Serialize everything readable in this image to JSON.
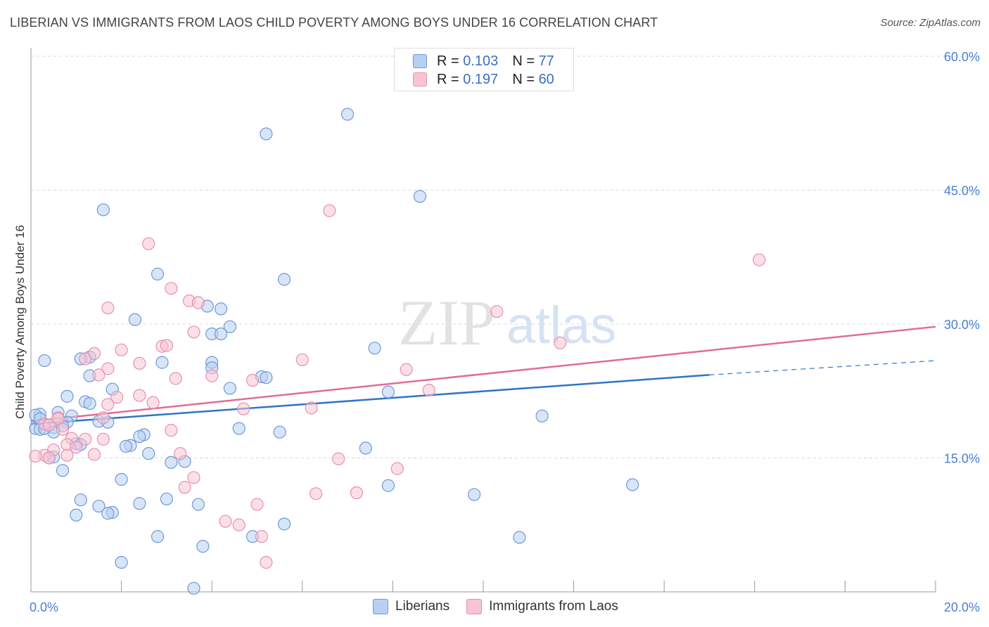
{
  "title": "LIBERIAN VS IMMIGRANTS FROM LAOS CHILD POVERTY AMONG BOYS UNDER 16 CORRELATION CHART",
  "source": "Source: ZipAtlas.com",
  "watermark": {
    "zip": "ZIP",
    "atlas": "atlas"
  },
  "legend": {
    "series1": {
      "r_label": "R =",
      "r_value": "0.103",
      "n_label": "N =",
      "n_value": "77"
    },
    "series2": {
      "r_label": "R =",
      "r_value": "0.197",
      "n_label": "N =",
      "n_value": "60"
    }
  },
  "bottom_legend": {
    "series1": "Liberians",
    "series2": "Immigrants from Laos"
  },
  "colors": {
    "blue_fill": "#b8d0f0",
    "blue_stroke": "#6d9ad8",
    "blue_line": "#2f74c8",
    "pink_fill": "#f8c4d4",
    "pink_stroke": "#e890ae",
    "pink_line": "#e06c98",
    "grid": "#d8d8d8",
    "tick_label": "#4a7fd0"
  },
  "chart_data": {
    "type": "scatter",
    "title": "LIBERIAN VS IMMIGRANTS FROM LAOS CHILD POVERTY AMONG BOYS UNDER 16 CORRELATION CHART",
    "xlabel": "",
    "ylabel": "Child Poverty Among Boys Under 16",
    "xlim": [
      0,
      20
    ],
    "ylim": [
      0,
      60
    ],
    "x_tick_labels": [
      "0.0%",
      "20.0%"
    ],
    "y_ticks": [
      15,
      30,
      45,
      60
    ],
    "y_tick_labels": [
      "15.0%",
      "30.0%",
      "45.0%",
      "60.0%"
    ],
    "grid": true,
    "legend_position": "top-center",
    "series": [
      {
        "name": "Liberians",
        "color": "#6d9ad8",
        "trend": {
          "x": [
            0,
            15
          ],
          "y": [
            18.8,
            24.3
          ],
          "dashed_to": [
            20,
            25.9
          ]
        },
        "points": [
          [
            7.0,
            53.5
          ],
          [
            5.2,
            51.3
          ],
          [
            1.6,
            42.8
          ],
          [
            8.6,
            44.3
          ],
          [
            2.8,
            35.6
          ],
          [
            5.6,
            35.0
          ],
          [
            3.9,
            32.0
          ],
          [
            4.2,
            31.7
          ],
          [
            2.3,
            30.5
          ],
          [
            4.4,
            29.7
          ],
          [
            4.0,
            28.9
          ],
          [
            4.2,
            28.9
          ],
          [
            7.6,
            27.3
          ],
          [
            1.3,
            26.3
          ],
          [
            1.1,
            26.1
          ],
          [
            0.3,
            25.9
          ],
          [
            2.9,
            25.7
          ],
          [
            4.0,
            25.7
          ],
          [
            4.0,
            25.1
          ],
          [
            1.3,
            24.2
          ],
          [
            5.1,
            24.1
          ],
          [
            5.2,
            24.0
          ],
          [
            1.8,
            22.7
          ],
          [
            4.4,
            22.8
          ],
          [
            7.9,
            22.4
          ],
          [
            0.8,
            21.9
          ],
          [
            1.2,
            21.3
          ],
          [
            1.3,
            21.1
          ],
          [
            0.6,
            20.1
          ],
          [
            0.9,
            19.7
          ],
          [
            0.2,
            19.9
          ],
          [
            0.1,
            19.8
          ],
          [
            11.3,
            19.7
          ],
          [
            1.5,
            19.1
          ],
          [
            1.7,
            19.0
          ],
          [
            0.8,
            19.0
          ],
          [
            0.7,
            18.6
          ],
          [
            0.5,
            18.4
          ],
          [
            0.1,
            18.3
          ],
          [
            0.2,
            18.2
          ],
          [
            4.6,
            18.3
          ],
          [
            5.5,
            17.9
          ],
          [
            0.5,
            17.9
          ],
          [
            2.5,
            17.6
          ],
          [
            2.4,
            17.4
          ],
          [
            1.0,
            16.6
          ],
          [
            1.1,
            16.5
          ],
          [
            2.2,
            16.4
          ],
          [
            2.1,
            16.3
          ],
          [
            7.4,
            16.1
          ],
          [
            2.6,
            15.5
          ],
          [
            0.5,
            15.1
          ],
          [
            0.4,
            15.0
          ],
          [
            3.1,
            14.5
          ],
          [
            0.7,
            13.6
          ],
          [
            3.4,
            14.6
          ],
          [
            2.0,
            12.6
          ],
          [
            7.9,
            11.9
          ],
          [
            13.3,
            12.0
          ],
          [
            1.1,
            10.3
          ],
          [
            3.0,
            10.4
          ],
          [
            1.5,
            9.6
          ],
          [
            2.4,
            9.9
          ],
          [
            3.7,
            9.8
          ],
          [
            9.8,
            10.9
          ],
          [
            1.8,
            8.9
          ],
          [
            1.7,
            8.8
          ],
          [
            1.0,
            8.6
          ],
          [
            5.6,
            7.6
          ],
          [
            4.9,
            6.2
          ],
          [
            2.8,
            6.2
          ],
          [
            10.8,
            6.1
          ],
          [
            3.8,
            5.1
          ],
          [
            2.0,
            3.3
          ],
          [
            3.6,
            0.4
          ],
          [
            0.2,
            19.4
          ],
          [
            0.3,
            18.3
          ]
        ]
      },
      {
        "name": "Immigrants from Laos",
        "color": "#e890ae",
        "trend": {
          "x": [
            0,
            20
          ],
          "y": [
            19.1,
            29.7
          ]
        },
        "points": [
          [
            6.6,
            42.7
          ],
          [
            16.1,
            37.2
          ],
          [
            2.6,
            39.0
          ],
          [
            3.1,
            34.0
          ],
          [
            1.7,
            31.8
          ],
          [
            3.5,
            32.6
          ],
          [
            3.7,
            32.4
          ],
          [
            10.3,
            31.4
          ],
          [
            3.6,
            29.1
          ],
          [
            2.0,
            27.1
          ],
          [
            2.9,
            27.5
          ],
          [
            3.0,
            27.6
          ],
          [
            1.4,
            26.7
          ],
          [
            1.2,
            26.1
          ],
          [
            11.7,
            27.9
          ],
          [
            2.4,
            25.6
          ],
          [
            6.0,
            26.0
          ],
          [
            1.7,
            25.0
          ],
          [
            8.3,
            24.9
          ],
          [
            1.5,
            24.3
          ],
          [
            4.0,
            24.2
          ],
          [
            3.2,
            23.9
          ],
          [
            4.9,
            23.7
          ],
          [
            2.4,
            22.0
          ],
          [
            1.9,
            21.8
          ],
          [
            1.7,
            21.0
          ],
          [
            2.7,
            21.2
          ],
          [
            8.8,
            22.6
          ],
          [
            4.7,
            20.5
          ],
          [
            6.2,
            20.6
          ],
          [
            0.6,
            19.5
          ],
          [
            0.6,
            19.4
          ],
          [
            1.6,
            19.5
          ],
          [
            0.3,
            18.8
          ],
          [
            0.4,
            18.7
          ],
          [
            3.1,
            18.1
          ],
          [
            0.7,
            18.2
          ],
          [
            1.6,
            17.1
          ],
          [
            1.2,
            17.1
          ],
          [
            0.9,
            17.2
          ],
          [
            0.8,
            16.5
          ],
          [
            1.0,
            16.2
          ],
          [
            0.5,
            15.9
          ],
          [
            1.4,
            15.4
          ],
          [
            0.8,
            15.3
          ],
          [
            0.3,
            15.3
          ],
          [
            3.3,
            15.5
          ],
          [
            0.4,
            15.0
          ],
          [
            3.6,
            12.8
          ],
          [
            6.8,
            14.9
          ],
          [
            8.1,
            13.8
          ],
          [
            3.4,
            11.7
          ],
          [
            6.3,
            11.0
          ],
          [
            7.2,
            11.1
          ],
          [
            5.0,
            9.8
          ],
          [
            4.3,
            7.9
          ],
          [
            4.6,
            7.5
          ],
          [
            5.1,
            6.2
          ],
          [
            5.2,
            3.3
          ],
          [
            0.1,
            15.2
          ]
        ]
      }
    ]
  }
}
